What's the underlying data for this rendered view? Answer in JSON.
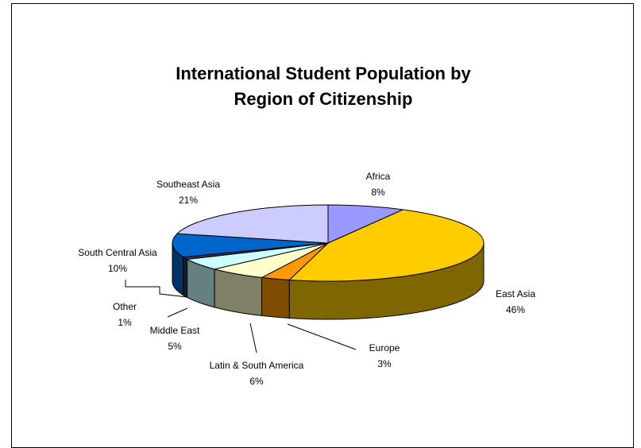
{
  "chart_data": {
    "type": "pie",
    "title": "International Student Population by Region of Citizenship",
    "title_lines": [
      "International Student Population by",
      "Region of Citizenship"
    ],
    "style": "3d",
    "slices": [
      {
        "label": "Africa",
        "value": 8,
        "value_label": "8%",
        "color": "#9999FF",
        "side_color": "#5D5DAA"
      },
      {
        "label": "East Asia",
        "value": 46,
        "value_label": "46%",
        "color": "#FFCC00",
        "side_color": "#806600"
      },
      {
        "label": "Europe",
        "value": 3,
        "value_label": "3%",
        "color": "#FF9900",
        "side_color": "#7F4C00"
      },
      {
        "label": "Latin & South America",
        "value": 6,
        "value_label": "6%",
        "color": "#FFFFCC",
        "side_color": "#808066"
      },
      {
        "label": "Middle East",
        "value": 5,
        "value_label": "5%",
        "color": "#CCFFFF",
        "side_color": "#668080"
      },
      {
        "label": "Other",
        "value": 1,
        "value_label": "1%",
        "color": "#333366",
        "side_color": "#1A1A33"
      },
      {
        "label": "South Central Asia",
        "value": 10,
        "value_label": "10%",
        "color": "#0066CC",
        "side_color": "#003366"
      },
      {
        "label": "Southeast Asia",
        "value": 21,
        "value_label": "21%",
        "color": "#CCCCFF",
        "side_color": "#666680"
      }
    ]
  }
}
